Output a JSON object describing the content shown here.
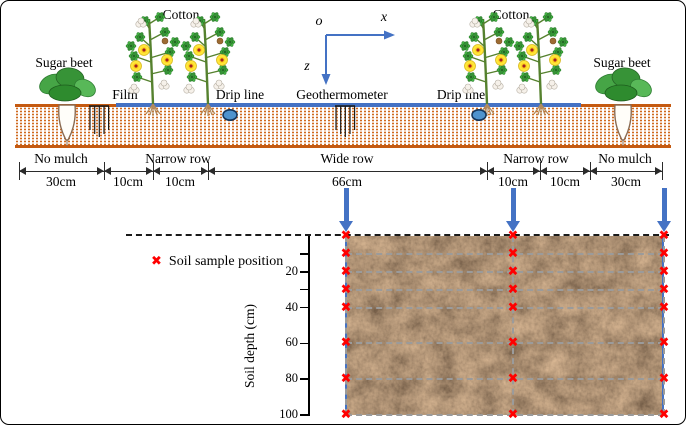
{
  "diagram": {
    "axis": {
      "origin": "o",
      "x": "x",
      "z": "z"
    },
    "labels": {
      "cotton": "Cotton",
      "sugar_beet": "Sugar beet",
      "film": "Film",
      "drip_line": "Drip line",
      "geothermometer": "Geothermometer"
    },
    "ruler": {
      "zones": [
        "No mulch",
        "Narrow row",
        "Wide row",
        "Narrow row",
        "No mulch"
      ],
      "values": [
        "30cm",
        "10cm",
        "10cm",
        "66cm",
        "10cm",
        "10cm",
        "30cm"
      ]
    }
  },
  "profile": {
    "legend_label": "Soil sample position",
    "marker_glyph": "✖",
    "y_axis_label": "Soil depth (cm)",
    "ticks": [
      {
        "depth": 10,
        "label": ""
      },
      {
        "depth": 20,
        "label": "20"
      },
      {
        "depth": 30,
        "label": ""
      },
      {
        "depth": 40,
        "label": "40"
      },
      {
        "depth": 60,
        "label": "60"
      },
      {
        "depth": 80,
        "label": "80"
      },
      {
        "depth": 100,
        "label": "100"
      }
    ],
    "grid_depths": [
      10,
      20,
      30,
      40,
      60,
      80,
      100
    ],
    "sample_depths_cm": [
      0,
      10,
      20,
      30,
      40,
      60,
      80,
      100
    ],
    "sample_columns": 3
  },
  "colors": {
    "accent_blue": "#4472C4",
    "soil_border_orange": "#C55A11",
    "marker_red": "#FF0000",
    "grid_gray": "#9B9B9B"
  }
}
